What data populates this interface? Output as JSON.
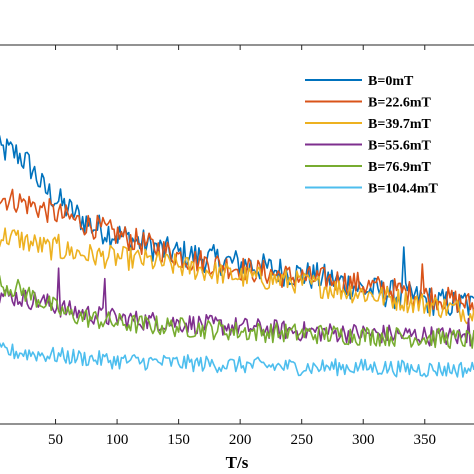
{
  "chart_data": {
    "type": "line",
    "xlabel": "T/s",
    "ylabel": "",
    "title": "",
    "xlim": [
      0,
      390
    ],
    "x_ticks": [
      50,
      100,
      150,
      200,
      250,
      300,
      350
    ],
    "grid": false,
    "legend_placement": "top-right",
    "series": [
      {
        "name": "B=0mT",
        "color": "#0072BD",
        "x": [
          0,
          10,
          20,
          30,
          40,
          60,
          80,
          100,
          120,
          140,
          160,
          180,
          200,
          220,
          240,
          260,
          280,
          300,
          320,
          340,
          360,
          380,
          390
        ],
        "y": [
          0.7,
          0.7,
          0.69,
          0.66,
          0.61,
          0.56,
          0.52,
          0.5,
          0.48,
          0.46,
          0.45,
          0.44,
          0.43,
          0.42,
          0.41,
          0.4,
          0.39,
          0.37,
          0.36,
          0.35,
          0.34,
          0.33,
          0.33
        ]
      },
      {
        "name": "B=22.6mT",
        "color": "#D95319",
        "x": [
          0,
          20,
          40,
          60,
          80,
          100,
          120,
          140,
          160,
          180,
          200,
          220,
          240,
          260,
          280,
          300,
          320,
          340,
          360,
          380,
          390
        ],
        "y": [
          0.59,
          0.58,
          0.56,
          0.54,
          0.52,
          0.5,
          0.48,
          0.46,
          0.44,
          0.43,
          0.42,
          0.41,
          0.4,
          0.395,
          0.39,
          0.38,
          0.37,
          0.36,
          0.35,
          0.34,
          0.33
        ]
      },
      {
        "name": "B=39.7mT",
        "color": "#EDB120",
        "x": [
          0,
          20,
          40,
          60,
          80,
          100,
          120,
          140,
          160,
          180,
          200,
          220,
          240,
          260,
          280,
          300,
          320,
          340,
          360,
          380,
          390
        ],
        "y": [
          0.5,
          0.49,
          0.47,
          0.46,
          0.45,
          0.445,
          0.44,
          0.43,
          0.42,
          0.41,
          0.4,
          0.395,
          0.39,
          0.38,
          0.37,
          0.36,
          0.35,
          0.34,
          0.33,
          0.32,
          0.31
        ]
      },
      {
        "name": "B=55.6mT",
        "color": "#7E2F8E",
        "x": [
          0,
          20,
          40,
          60,
          80,
          100,
          150,
          200,
          250,
          300,
          350,
          390
        ],
        "y": [
          0.36,
          0.35,
          0.34,
          0.32,
          0.31,
          0.3,
          0.29,
          0.28,
          0.27,
          0.265,
          0.26,
          0.255
        ]
      },
      {
        "name": "B=76.9mT",
        "color": "#77AC30",
        "x": [
          0,
          20,
          40,
          60,
          80,
          100,
          150,
          200,
          250,
          300,
          350,
          390
        ],
        "y": [
          0.385,
          0.37,
          0.34,
          0.31,
          0.3,
          0.29,
          0.28,
          0.27,
          0.265,
          0.26,
          0.255,
          0.25
        ]
      },
      {
        "name": "B=104.4mT",
        "color": "#4DBEEE",
        "x": [
          0,
          20,
          40,
          60,
          80,
          100,
          150,
          200,
          250,
          300,
          350,
          390
        ],
        "y": [
          0.225,
          0.22,
          0.215,
          0.21,
          0.205,
          0.2,
          0.195,
          0.19,
          0.185,
          0.185,
          0.18,
          0.18
        ]
      }
    ],
    "spikes": [
      {
        "series": "B=0mT",
        "x": 333,
        "y": 0.47
      },
      {
        "series": "B=0mT",
        "x": 382,
        "y": 0.36
      },
      {
        "series": "B=22.6mT",
        "x": 348,
        "y": 0.43
      },
      {
        "series": "B=39.7mT",
        "x": 53,
        "y": 0.5
      },
      {
        "series": "B=55.6mT",
        "x": 52,
        "y": 0.42
      },
      {
        "series": "B=55.6mT",
        "x": 90,
        "y": 0.395
      },
      {
        "series": "B=55.6mT",
        "x": 386,
        "y": 0.3
      }
    ]
  }
}
